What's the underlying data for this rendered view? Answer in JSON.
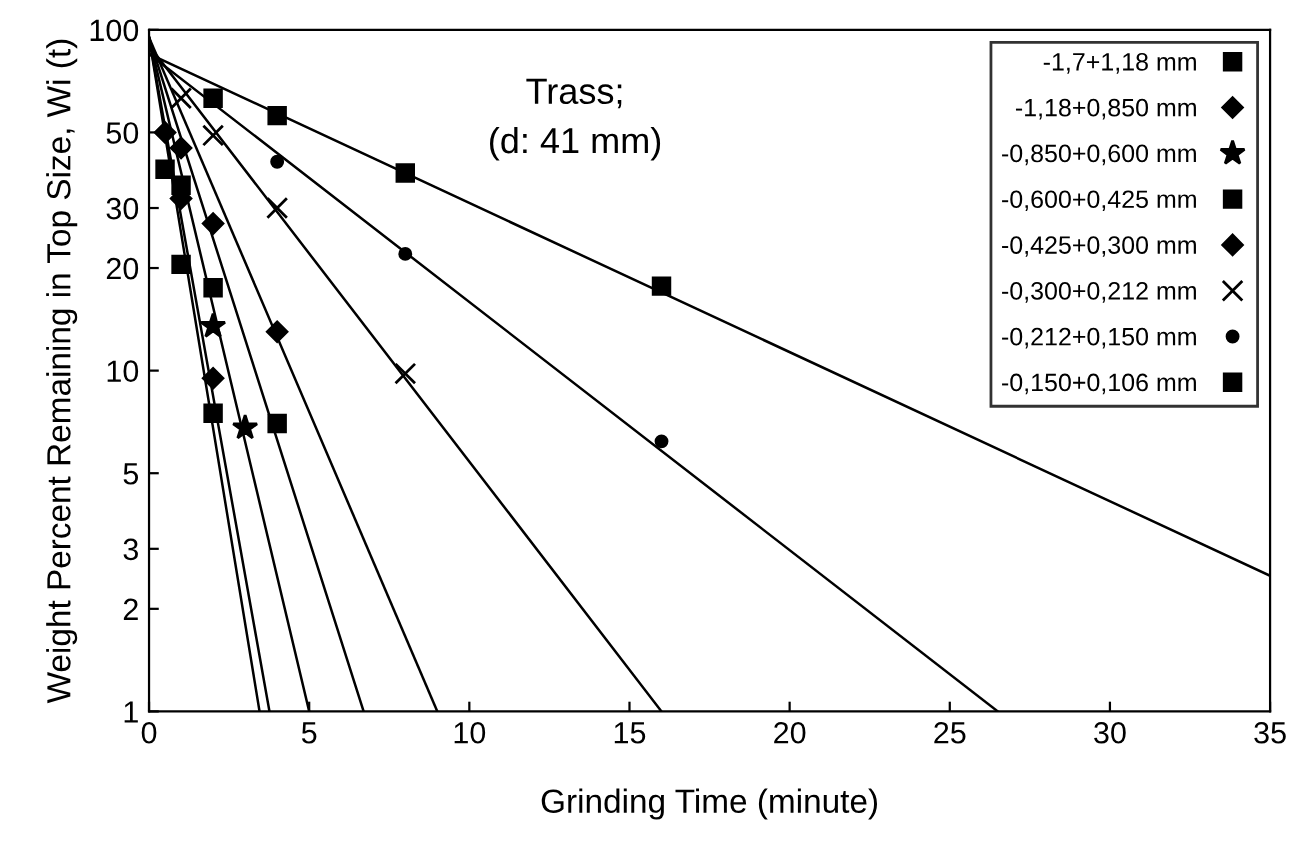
{
  "chart_data": {
    "type": "scatter",
    "xlabel": "Grinding Time (minute)",
    "ylabel": "Weight Percent Remaining in Top Size, Wi (t)",
    "annotations": [
      "Trass;\n(d: 41 mm)"
    ],
    "log": "y",
    "xlim": [
      0,
      35
    ],
    "xticks": [
      0,
      5,
      10,
      15,
      20,
      25,
      30,
      35
    ],
    "ylim": [
      1,
      100
    ],
    "yticks": [
      1,
      2,
      3,
      5,
      10,
      20,
      30,
      50,
      100
    ],
    "grid": false,
    "legend": "top right",
    "series": [
      {
        "name": "-1,7+1,18 mm",
        "color": "#000000",
        "marker": "square",
        "x": [
          0.5,
          1,
          2
        ],
        "values": [
          39,
          20.5,
          7.5
        ]
      },
      {
        "name": "-1,18+0,850 mm",
        "color": "#000000",
        "marker": "diamond",
        "x": [
          0.5,
          1,
          2
        ],
        "values": [
          50,
          32,
          9.5
        ]
      },
      {
        "name": "-0,850+0,600 mm",
        "color": "#000000",
        "marker": "star",
        "x": [
          2,
          3
        ],
        "values": [
          13.5,
          6.8
        ]
      },
      {
        "name": "-0,600+0,425 mm",
        "color": "#000000",
        "marker": "square",
        "x": [
          1,
          2,
          4
        ],
        "values": [
          35,
          17.5,
          7
        ]
      },
      {
        "name": "-0,425+0,300 mm",
        "color": "#000000",
        "marker": "diamond",
        "x": [
          1,
          2,
          4
        ],
        "values": [
          45,
          27,
          13
        ]
      },
      {
        "name": "-0,300+0,212 mm",
        "color": "#000000",
        "marker": "cross",
        "x": [
          1,
          2,
          4,
          8
        ],
        "values": [
          63,
          49,
          30,
          9.8
        ]
      },
      {
        "name": "-0,212+0,150 mm",
        "color": "#000000",
        "marker": "circle",
        "x": [
          4,
          8,
          16
        ],
        "values": [
          41,
          22,
          6.2
        ]
      },
      {
        "name": "-0,150+0,106 mm",
        "color": "#000000",
        "marker": "square",
        "x": [
          2,
          4,
          8,
          16
        ],
        "values": [
          63,
          56,
          38,
          17.7
        ]
      },
      {
        "type": "line",
        "color": "#000000",
        "x": [
          0,
          3.45
        ],
        "values": [
          95,
          1
        ]
      },
      {
        "type": "line",
        "color": "#000000",
        "x": [
          0,
          3.76
        ],
        "values": [
          95,
          1
        ]
      },
      {
        "type": "line",
        "color": "#000000",
        "x": [
          0,
          5.0
        ],
        "values": [
          95,
          1
        ]
      },
      {
        "type": "line",
        "color": "#000000",
        "x": [
          0,
          6.7
        ],
        "values": [
          95,
          1
        ]
      },
      {
        "type": "line",
        "color": "#000000",
        "x": [
          0,
          9.0
        ],
        "values": [
          95,
          1
        ]
      },
      {
        "type": "line",
        "color": "#000000",
        "x": [
          0,
          16
        ],
        "values": [
          90,
          1
        ]
      },
      {
        "type": "line",
        "color": "#000000",
        "x": [
          0,
          26.5
        ],
        "values": [
          85,
          1
        ]
      },
      {
        "type": "line",
        "color": "#000000",
        "x": [
          0,
          35
        ],
        "values": [
          85,
          2.5
        ]
      }
    ]
  }
}
